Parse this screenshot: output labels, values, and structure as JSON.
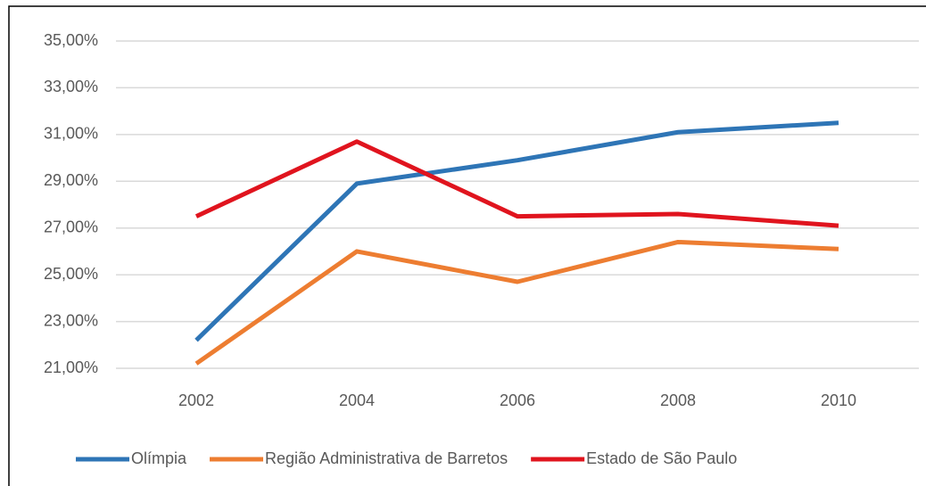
{
  "chart_data": {
    "type": "line",
    "categories": [
      "2002",
      "2004",
      "2006",
      "2008",
      "2010"
    ],
    "series": [
      {
        "name": "Olímpia",
        "color": "#2e75b6",
        "values": [
          22.2,
          28.9,
          29.9,
          31.1,
          31.5
        ]
      },
      {
        "name": "Região Administrativa de Barretos",
        "color": "#ed7d31",
        "values": [
          21.2,
          26.0,
          24.7,
          26.4,
          26.1
        ]
      },
      {
        "name": "Estado de São Paulo",
        "color": "#e0141e",
        "values": [
          27.5,
          30.7,
          27.5,
          27.6,
          27.1
        ]
      }
    ],
    "ylim": [
      21,
      35
    ],
    "yticks": [
      {
        "value": 21,
        "label": "21,00%"
      },
      {
        "value": 23,
        "label": "23,00%"
      },
      {
        "value": 25,
        "label": "25,00%"
      },
      {
        "value": 27,
        "label": "27,00%"
      },
      {
        "value": 29,
        "label": "29,00%"
      },
      {
        "value": 31,
        "label": "31,00%"
      },
      {
        "value": 33,
        "label": "33,00%"
      },
      {
        "value": 35,
        "label": "35,00%"
      }
    ],
    "grid": true,
    "legend": "bottom"
  }
}
